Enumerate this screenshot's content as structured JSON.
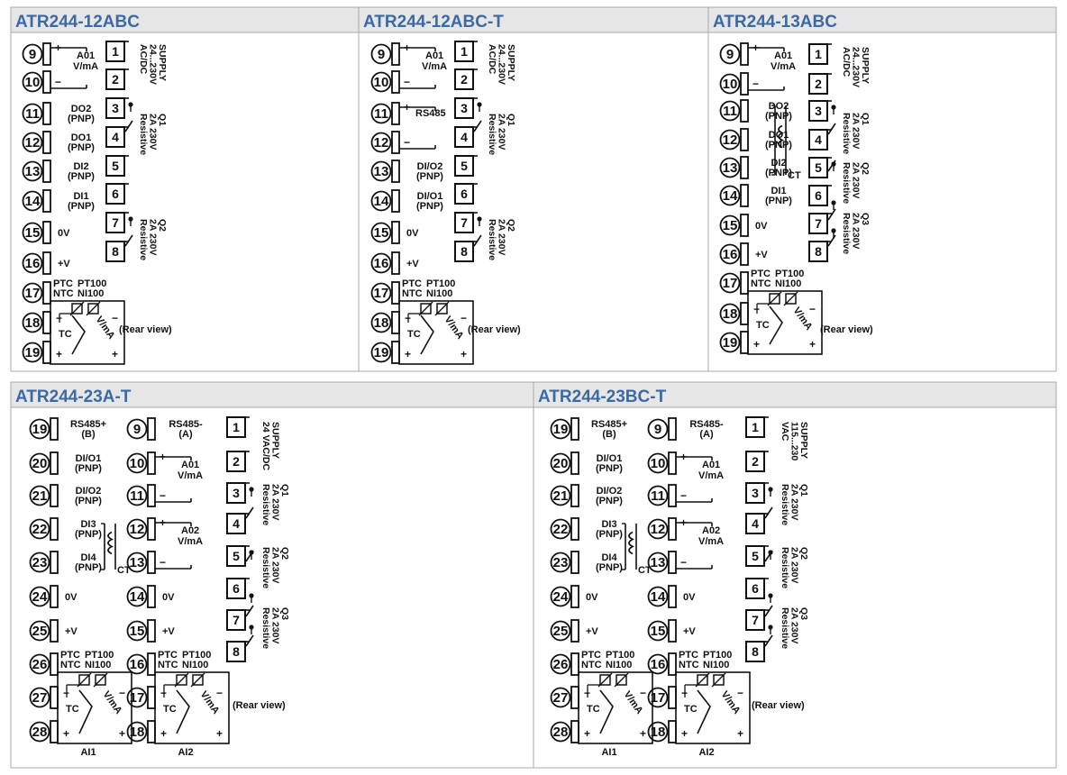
{
  "colors": {
    "title": "#3b6aa5",
    "header_bg": "#e6e6e6",
    "frame": "#a8a8a8",
    "ink": "#111111"
  },
  "panels": [
    {
      "title": "ATR244-12ABC",
      "circles": [
        {
          "n": "9",
          "sign": "+",
          "t1": "A01",
          "t1b": "V/mA"
        },
        {
          "n": "10",
          "sign": "−"
        },
        {
          "n": "11",
          "t1": "DO2",
          "t2": "(PNP)"
        },
        {
          "n": "12",
          "t1": "DO1",
          "t2": "(PNP)"
        },
        {
          "n": "13",
          "t1": "DI2",
          "t2": "(PNP)"
        },
        {
          "n": "14",
          "t1": "DI1",
          "t2": "(PNP)"
        },
        {
          "n": "15",
          "t1": "0V"
        },
        {
          "n": "16",
          "t1": "+V"
        },
        {
          "n": "17",
          "t1": "PTC",
          "t2": "NTC",
          "t3": "PT100",
          "t4": "NI100"
        },
        {
          "n": "18"
        },
        {
          "n": "19"
        }
      ],
      "squares": [
        "1",
        "2",
        "3",
        "4",
        "5",
        "6",
        "7",
        "8"
      ],
      "supply": [
        "SUPPLY",
        "24...230V",
        "AC/DC"
      ],
      "relays": [
        {
          "lines": [
            "Q1",
            "2A 230V",
            "Resistive"
          ]
        },
        {
          "lines": [
            "Q2",
            "2A 230V",
            "Resistive"
          ]
        }
      ],
      "sensor": {
        "tc": "TC",
        "vma": "V/mA"
      },
      "rear": "(Rear view)"
    },
    {
      "title": "ATR244-12ABC-T",
      "circles": [
        {
          "n": "9",
          "sign": "+",
          "t1": "A01",
          "t1b": "V/mA"
        },
        {
          "n": "10",
          "sign": "−"
        },
        {
          "n": "11",
          "sign": "+",
          "t1": "RS485"
        },
        {
          "n": "12",
          "sign": "−"
        },
        {
          "n": "13",
          "t1": "DI/O2",
          "t2": "(PNP)"
        },
        {
          "n": "14",
          "t1": "DI/O1",
          "t2": "(PNP)"
        },
        {
          "n": "15",
          "t1": "0V"
        },
        {
          "n": "16",
          "t1": "+V"
        },
        {
          "n": "17",
          "t1": "PTC",
          "t2": "NTC",
          "t3": "PT100",
          "t4": "NI100"
        },
        {
          "n": "18"
        },
        {
          "n": "19"
        }
      ],
      "squares": [
        "1",
        "2",
        "3",
        "4",
        "5",
        "6",
        "7",
        "8"
      ],
      "supply": [
        "SUPPLY",
        "24...230V",
        "AC/DC"
      ],
      "relays": [
        {
          "lines": [
            "Q1",
            "2A 230V",
            "Resistive"
          ]
        },
        {
          "lines": [
            "Q2",
            "2A 230V",
            "Resistive"
          ]
        }
      ],
      "sensor": {
        "tc": "TC",
        "vma": "V/mA"
      },
      "rear": "(Rear view)"
    },
    {
      "title": "ATR244-13ABC",
      "circles": [
        {
          "n": "9",
          "sign": "+",
          "t1": "A01",
          "t1b": "V/mA"
        },
        {
          "n": "10",
          "sign": "−"
        },
        {
          "n": "11",
          "t1": "DO2",
          "t2": "(PNP)"
        },
        {
          "n": "12",
          "t1": "DO1",
          "t2": "(PNP)"
        },
        {
          "n": "13",
          "t1": "DI2",
          "t2": "(PNP)"
        },
        {
          "n": "14",
          "t1": "DI1",
          "t2": "(PNP)"
        },
        {
          "n": "15",
          "t1": "0V"
        },
        {
          "n": "16",
          "t1": "+V"
        },
        {
          "n": "17",
          "t1": "PTC",
          "t2": "NTC",
          "t3": "PT100",
          "t4": "NI100"
        },
        {
          "n": "18"
        },
        {
          "n": "19"
        }
      ],
      "ct": "CT",
      "squares": [
        "1",
        "2",
        "3",
        "4",
        "5",
        "6",
        "7",
        "8"
      ],
      "supply": [
        "SUPPLY",
        "24...230V",
        "AC/DC"
      ],
      "relays": [
        {
          "lines": [
            "Q1",
            "2A 230V",
            "Resistive"
          ]
        },
        {
          "lines": [
            "Q2",
            "2A 230V",
            "Resistive"
          ]
        },
        {
          "lines": [
            "Q3",
            "2A 230V",
            "Resistive"
          ]
        }
      ],
      "sensor": {
        "tc": "TC",
        "vma": "V/mA"
      },
      "rear": "(Rear view)"
    },
    {
      "title": "ATR244-23A-T",
      "col_a": [
        {
          "n": "19",
          "t1": "RS485+",
          "t2": "(B)"
        },
        {
          "n": "20",
          "t1": "DI/O1",
          "t2": "(PNP)"
        },
        {
          "n": "21",
          "t1": "DI/O2",
          "t2": "(PNP)"
        },
        {
          "n": "22",
          "t1": "DI3",
          "t2": "(PNP)"
        },
        {
          "n": "23",
          "t1": "DI4",
          "t2": "(PNP)"
        },
        {
          "n": "24",
          "t1": "0V"
        },
        {
          "n": "25",
          "t1": "+V"
        },
        {
          "n": "26",
          "t1": "PTC",
          "t2": "NTC",
          "t3": "PT100",
          "t4": "NI100"
        },
        {
          "n": "27"
        },
        {
          "n": "28"
        }
      ],
      "col_b": [
        {
          "n": "9",
          "t1": "RS485-",
          "t2": "(A)"
        },
        {
          "n": "10",
          "sign": "+",
          "t1": "A01",
          "t1b": "V/mA"
        },
        {
          "n": "11",
          "sign": "−"
        },
        {
          "n": "12",
          "sign": "+",
          "t1": "A02",
          "t1b": "V/mA"
        },
        {
          "n": "13",
          "sign": "−"
        },
        {
          "n": "14",
          "t1": "0V"
        },
        {
          "n": "15",
          "t1": "+V"
        },
        {
          "n": "16",
          "t1": "PTC",
          "t2": "NTC",
          "t3": "PT100",
          "t4": "NI100"
        },
        {
          "n": "17"
        },
        {
          "n": "18"
        }
      ],
      "ct": "CT",
      "ai": [
        "AI1",
        "AI2"
      ],
      "squares": [
        "1",
        "2",
        "3",
        "4",
        "5",
        "6",
        "7",
        "8"
      ],
      "supply": [
        "SUPPLY",
        "24 VAC/DC"
      ],
      "relays": [
        {
          "lines": [
            "Q1",
            "2A 230V",
            "Resistive"
          ]
        },
        {
          "lines": [
            "Q2",
            "2A 230V",
            "Resistive"
          ]
        },
        {
          "lines": [
            "Q3",
            "2A 230V",
            "Resistive"
          ]
        }
      ],
      "sensor": {
        "tc": "TC",
        "vma": "V/mA"
      },
      "rear": "(Rear view)"
    },
    {
      "title": "ATR244-23BC-T",
      "col_a": [
        {
          "n": "19",
          "t1": "RS485+",
          "t2": "(B)"
        },
        {
          "n": "20",
          "t1": "DI/O1",
          "t2": "(PNP)"
        },
        {
          "n": "21",
          "t1": "DI/O2",
          "t2": "(PNP)"
        },
        {
          "n": "22",
          "t1": "DI3",
          "t2": "(PNP)"
        },
        {
          "n": "23",
          "t1": "DI4",
          "t2": "(PNP)"
        },
        {
          "n": "24",
          "t1": "0V"
        },
        {
          "n": "25",
          "t1": "+V"
        },
        {
          "n": "26",
          "t1": "PTC",
          "t2": "NTC",
          "t3": "PT100",
          "t4": "NI100"
        },
        {
          "n": "27"
        },
        {
          "n": "28"
        }
      ],
      "col_b": [
        {
          "n": "9",
          "t1": "RS485-",
          "t2": "(A)"
        },
        {
          "n": "10",
          "sign": "+",
          "t1": "A01",
          "t1b": "V/mA"
        },
        {
          "n": "11",
          "sign": "−"
        },
        {
          "n": "12",
          "sign": "+",
          "t1": "A02",
          "t1b": "V/mA"
        },
        {
          "n": "13",
          "sign": "−"
        },
        {
          "n": "14",
          "t1": "0V"
        },
        {
          "n": "15",
          "t1": "+V"
        },
        {
          "n": "16",
          "t1": "PTC",
          "t2": "NTC",
          "t3": "PT100",
          "t4": "NI100"
        },
        {
          "n": "17"
        },
        {
          "n": "18"
        }
      ],
      "ct": "CT",
      "ai": [
        "AI1",
        "AI2"
      ],
      "squares": [
        "1",
        "2",
        "3",
        "4",
        "5",
        "6",
        "7",
        "8"
      ],
      "supply": [
        "SUPPLY",
        "115...230",
        "VAC"
      ],
      "relays": [
        {
          "lines": [
            "Q1",
            "2A 230V",
            "Resistive"
          ]
        },
        {
          "lines": [
            "Q2",
            "2A 230V",
            "Resistive"
          ]
        },
        {
          "lines": [
            "Q3",
            "2A 230V",
            "Resistive"
          ]
        }
      ],
      "sensor": {
        "tc": "TC",
        "vma": "V/mA"
      },
      "rear": "(Rear view)"
    }
  ]
}
